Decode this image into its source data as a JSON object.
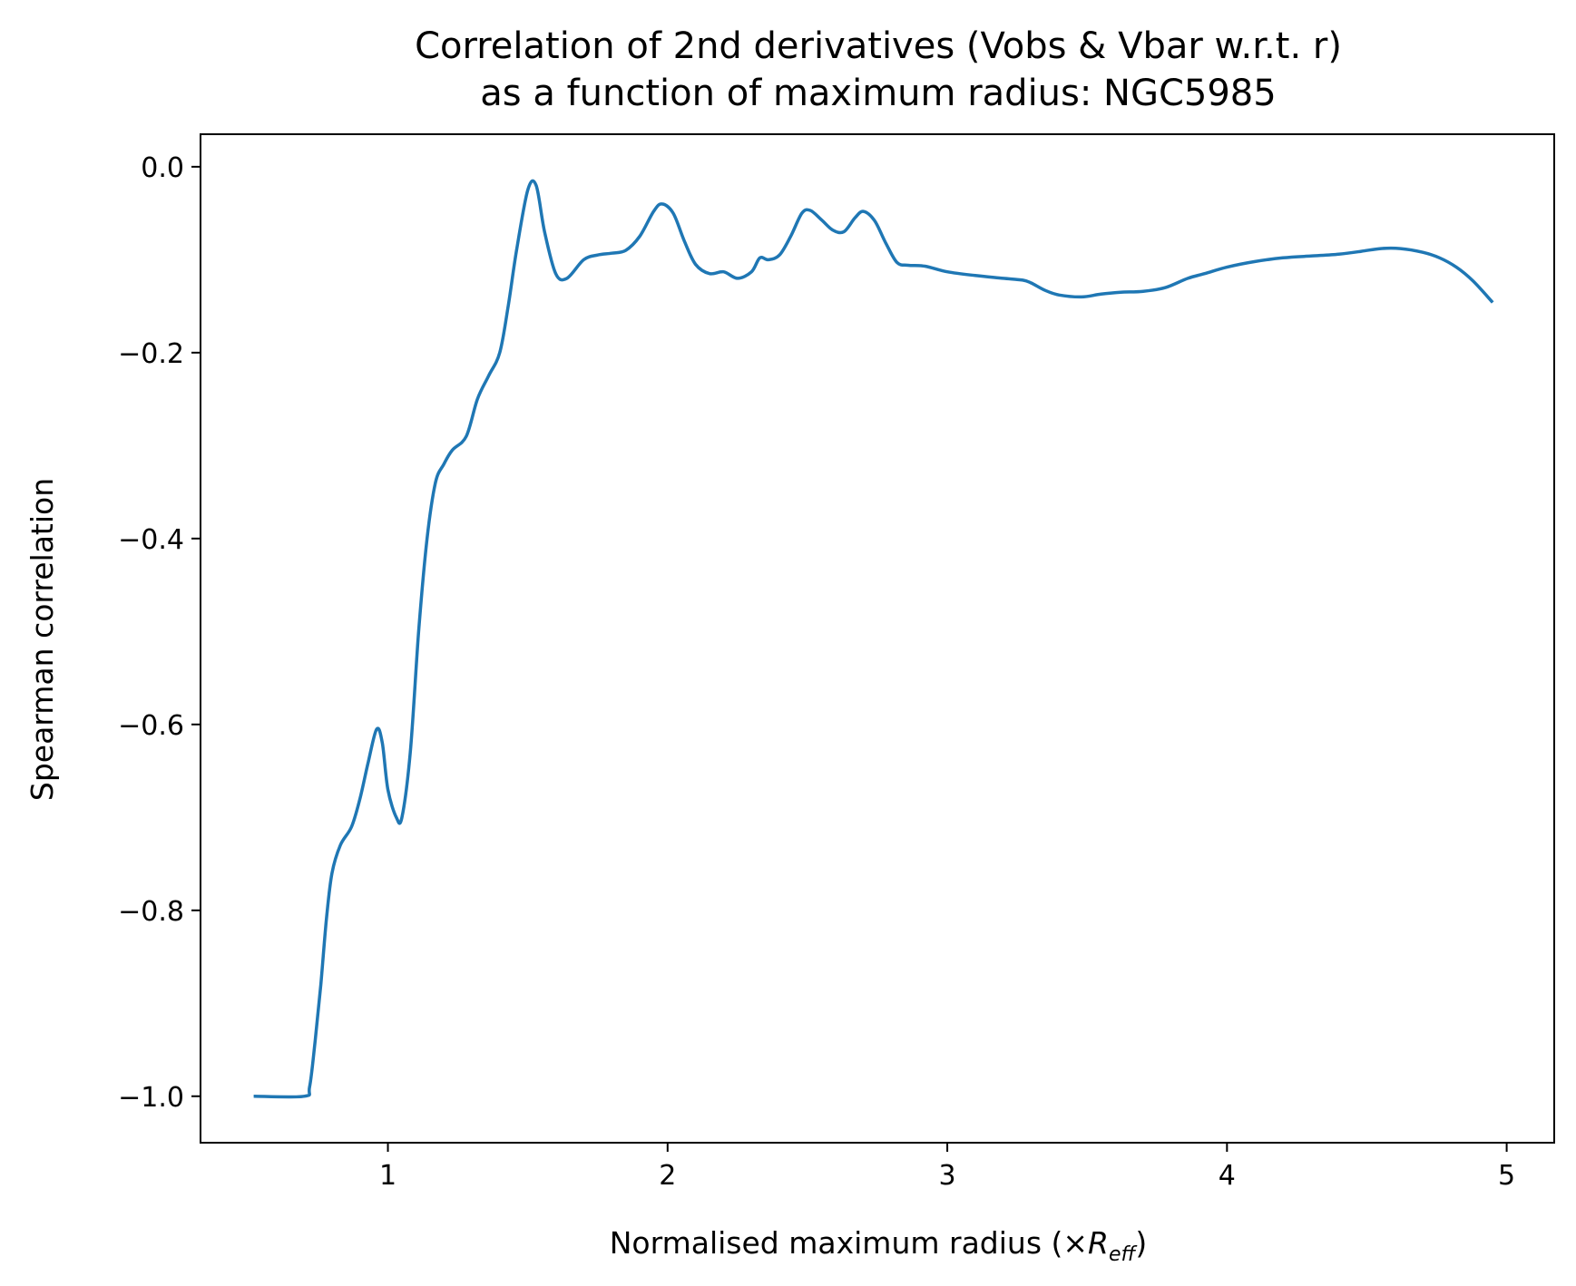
{
  "chart_data": {
    "type": "line",
    "title_lines": [
      "Correlation of 2nd derivatives (Vobs & Vbar w.r.t. r)",
      "as a function of maximum radius: NGC5985"
    ],
    "xlabel": {
      "prefix": "Normalised maximum radius (×",
      "var": "R",
      "sub": "eff",
      "suffix": ")"
    },
    "ylabel": "Spearman correlation",
    "xlim": [
      0.33,
      5.17
    ],
    "ylim": [
      -1.05,
      0.035
    ],
    "x_ticks": [
      {
        "value": 1,
        "label": "1"
      },
      {
        "value": 2,
        "label": "2"
      },
      {
        "value": 3,
        "label": "3"
      },
      {
        "value": 4,
        "label": "4"
      },
      {
        "value": 5,
        "label": "5"
      }
    ],
    "y_ticks": [
      {
        "value": 0.0,
        "label": "0.0"
      },
      {
        "value": -0.2,
        "label": "−0.2"
      },
      {
        "value": -0.4,
        "label": "−0.4"
      },
      {
        "value": -0.6,
        "label": "−0.6"
      },
      {
        "value": -0.8,
        "label": "−0.8"
      },
      {
        "value": -1.0,
        "label": "−1.0"
      }
    ],
    "grid": false,
    "legend": "none",
    "series": [
      {
        "color": "#1f77b4",
        "x": [
          0.52,
          0.7,
          0.72,
          0.74,
          0.76,
          0.78,
          0.8,
          0.83,
          0.87,
          0.9,
          0.93,
          0.96,
          0.98,
          1.0,
          1.03,
          1.05,
          1.08,
          1.11,
          1.14,
          1.17,
          1.2,
          1.23,
          1.28,
          1.32,
          1.36,
          1.4,
          1.43,
          1.46,
          1.5,
          1.53,
          1.56,
          1.6,
          1.64,
          1.7,
          1.75,
          1.8,
          1.85,
          1.9,
          1.95,
          1.98,
          2.02,
          2.06,
          2.1,
          2.15,
          2.2,
          2.25,
          2.3,
          2.33,
          2.36,
          2.4,
          2.44,
          2.48,
          2.51,
          2.55,
          2.59,
          2.63,
          2.67,
          2.7,
          2.74,
          2.78,
          2.82,
          2.86,
          2.92,
          3.0,
          3.1,
          3.2,
          3.27,
          3.3,
          3.35,
          3.4,
          3.48,
          3.55,
          3.62,
          3.7,
          3.78,
          3.86,
          3.92,
          4.0,
          4.1,
          4.2,
          4.3,
          4.4,
          4.48,
          4.55,
          4.62,
          4.7,
          4.76,
          4.82,
          4.88,
          4.95
        ],
        "y": [
          -1.0,
          -1.0,
          -0.99,
          -0.94,
          -0.88,
          -0.81,
          -0.76,
          -0.73,
          -0.71,
          -0.68,
          -0.64,
          -0.605,
          -0.62,
          -0.67,
          -0.7,
          -0.7,
          -0.63,
          -0.5,
          -0.4,
          -0.34,
          -0.32,
          -0.305,
          -0.29,
          -0.25,
          -0.225,
          -0.2,
          -0.15,
          -0.09,
          -0.025,
          -0.02,
          -0.07,
          -0.115,
          -0.12,
          -0.1,
          -0.095,
          -0.093,
          -0.09,
          -0.075,
          -0.048,
          -0.04,
          -0.05,
          -0.08,
          -0.105,
          -0.115,
          -0.113,
          -0.12,
          -0.113,
          -0.098,
          -0.1,
          -0.095,
          -0.075,
          -0.05,
          -0.047,
          -0.057,
          -0.068,
          -0.07,
          -0.055,
          -0.048,
          -0.058,
          -0.082,
          -0.103,
          -0.106,
          -0.107,
          -0.113,
          -0.117,
          -0.12,
          -0.122,
          -0.125,
          -0.133,
          -0.138,
          -0.14,
          -0.137,
          -0.135,
          -0.134,
          -0.13,
          -0.12,
          -0.115,
          -0.108,
          -0.102,
          -0.098,
          -0.096,
          -0.094,
          -0.091,
          -0.088,
          -0.088,
          -0.092,
          -0.098,
          -0.108,
          -0.123,
          -0.146
        ]
      }
    ]
  }
}
